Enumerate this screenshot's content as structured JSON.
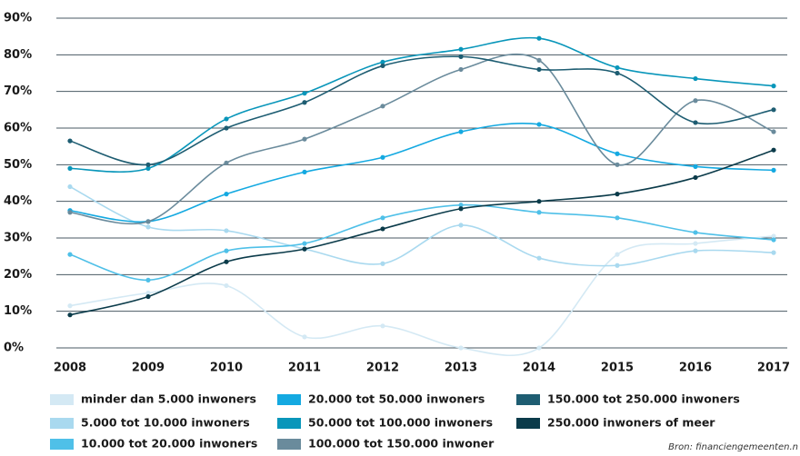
{
  "chart_data": {
    "type": "line",
    "categories": [
      "2008",
      "2009",
      "2010",
      "2011",
      "2012",
      "2013",
      "2014",
      "2015",
      "2016",
      "2017"
    ],
    "ylim": [
      0,
      90
    ],
    "yticks": [
      {
        "value": 0,
        "label": "0%"
      },
      {
        "value": 10,
        "label": "10%"
      },
      {
        "value": 20,
        "label": "20%"
      },
      {
        "value": 30,
        "label": "30%"
      },
      {
        "value": 40,
        "label": "40%"
      },
      {
        "value": 50,
        "label": "50%"
      },
      {
        "value": 60,
        "label": "60%"
      },
      {
        "value": 70,
        "label": "70%"
      },
      {
        "value": 80,
        "label": "80%"
      },
      {
        "value": 90,
        "label": "90%"
      }
    ],
    "grid": true,
    "series": [
      {
        "name": "minder dan 5.000 inwoners",
        "color": "#d4e9f4",
        "values": [
          11.5,
          15,
          17,
          3,
          6,
          0,
          0,
          25.5,
          28.5,
          30.5
        ]
      },
      {
        "name": "5.000 tot 10.000 inwoners",
        "color": "#a9d9ef",
        "values": [
          44,
          33,
          32,
          27,
          23,
          33.5,
          24.5,
          22.5,
          26.5,
          26
        ]
      },
      {
        "name": "10.000 tot 20.000 inwoners",
        "color": "#4fc0e8",
        "values": [
          25.5,
          18.5,
          26.5,
          28.5,
          35.5,
          39,
          37,
          35.5,
          31.5,
          29.5
        ]
      },
      {
        "name": "20.000 tot 50.000 inwoners",
        "color": "#14a9e1",
        "values": [
          37.5,
          34.5,
          42,
          48,
          52,
          59,
          61,
          53,
          49.5,
          48.5
        ]
      },
      {
        "name": "50.000 tot 100.000 inwoners",
        "color": "#0996ba",
        "values": [
          49,
          49,
          62.5,
          69.5,
          78,
          81.5,
          84.5,
          76.5,
          73.5,
          71.5
        ]
      },
      {
        "name": "100.000 tot 150.000 inwoner",
        "color": "#6a8b9c",
        "values": [
          37,
          34.5,
          50.5,
          57,
          66,
          76,
          78.5,
          50,
          67.5,
          59
        ]
      },
      {
        "name": "150.000 tot 250.000 inwoners",
        "color": "#1e5d72",
        "values": [
          56.5,
          50,
          60,
          67,
          77,
          79.5,
          76,
          75,
          61.5,
          65
        ]
      },
      {
        "name": "250.000 inwoners of meer",
        "color": "#0b3b4a",
        "values": [
          9,
          14,
          23.5,
          27,
          32.5,
          38,
          40,
          42,
          46.5,
          54
        ]
      }
    ],
    "source": "Bron: financiengemeenten.n"
  }
}
